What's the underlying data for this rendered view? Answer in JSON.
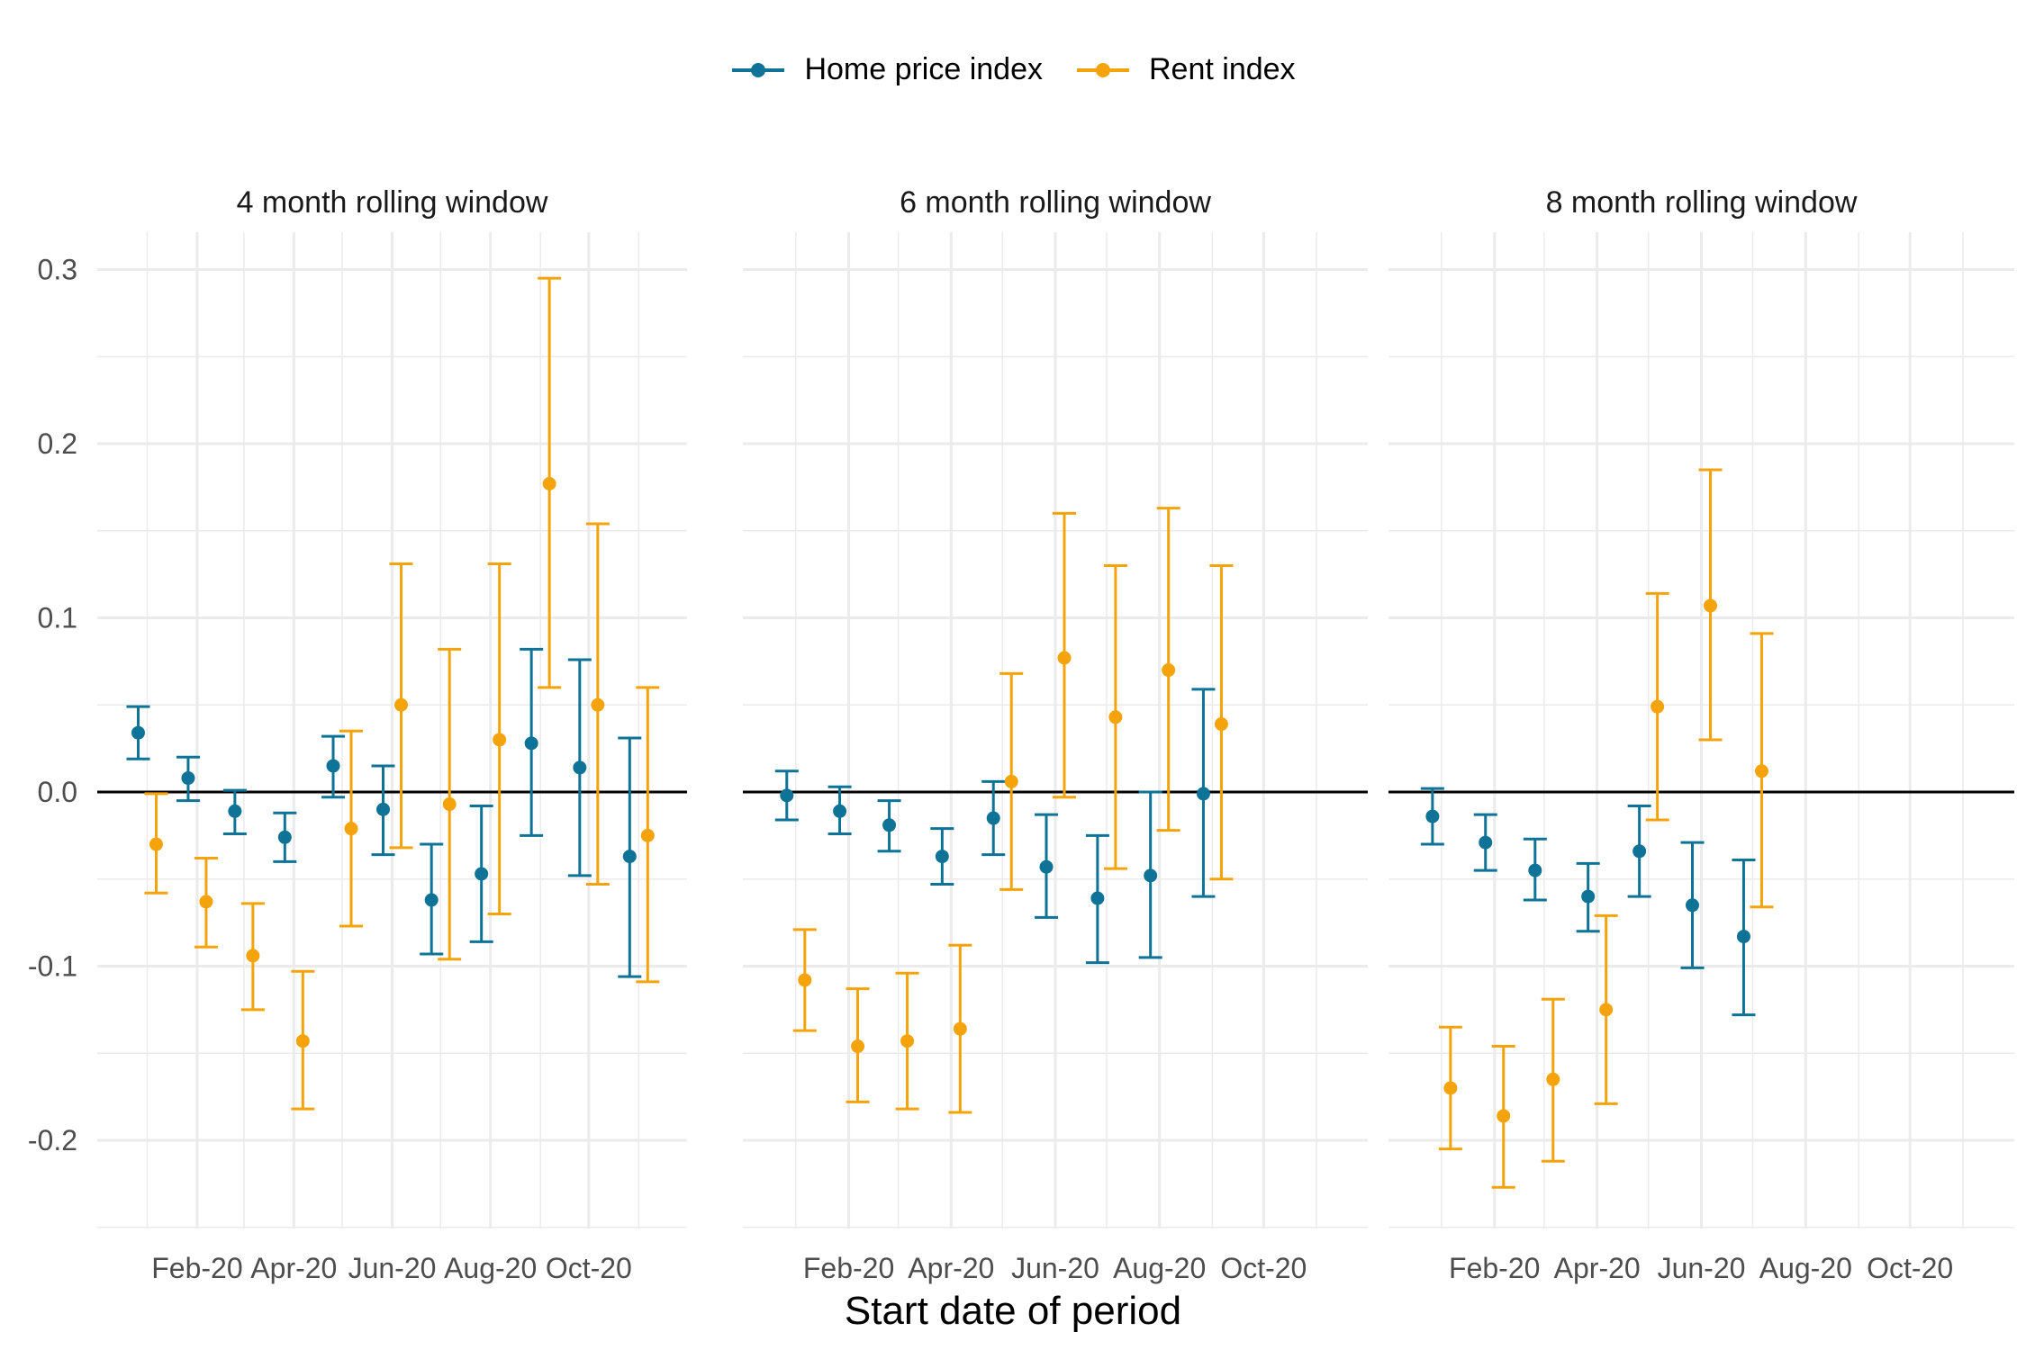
{
  "colors": {
    "home": "#0E7396",
    "rent": "#F5A30B",
    "grid": "#EBEBEB",
    "zero": "#000000"
  },
  "legend": [
    {
      "key": "home",
      "label": "Home price index"
    },
    {
      "key": "rent",
      "label": "Rent index"
    }
  ],
  "chart_data": {
    "type": "scatter",
    "error_bars": true,
    "xlabel": "Start date of period",
    "ylabel": "",
    "ylim": [
      -0.25,
      0.3
    ],
    "yticks": [
      -0.2,
      -0.1,
      0.0,
      0.1,
      0.2,
      0.3
    ],
    "ytick_labels": [
      "-0.2",
      "-0.1",
      "0.0",
      "0.1",
      "0.2",
      "0.3"
    ],
    "xlim": [
      "2019-12-01",
      "2020-12-01"
    ],
    "xticks": [
      "2020-02-01",
      "2020-04-01",
      "2020-06-01",
      "2020-08-01",
      "2020-10-01"
    ],
    "xtick_labels": [
      "Feb-20",
      "Apr-20",
      "Jun-20",
      "Aug-20",
      "Oct-20"
    ],
    "reference_line_y": 0,
    "grid": true,
    "legend_position": "top",
    "facets": [
      {
        "title": "4 month rolling window",
        "series": [
          {
            "name": "Home price index",
            "key": "home",
            "dates": [
              "2020-01-01",
              "2020-02-01",
              "2020-03-01",
              "2020-04-01",
              "2020-05-01",
              "2020-06-01",
              "2020-07-01",
              "2020-08-01",
              "2020-09-01",
              "2020-10-01",
              "2020-11-01"
            ],
            "y": [
              0.034,
              0.008,
              -0.011,
              -0.026,
              0.015,
              -0.01,
              -0.062,
              -0.047,
              0.028,
              0.014,
              -0.037
            ],
            "lo": [
              0.019,
              -0.005,
              -0.024,
              -0.04,
              -0.003,
              -0.036,
              -0.093,
              -0.086,
              -0.025,
              -0.048,
              -0.106
            ],
            "hi": [
              0.049,
              0.02,
              0.001,
              -0.012,
              0.032,
              0.015,
              -0.03,
              -0.008,
              0.082,
              0.076,
              0.031
            ]
          },
          {
            "name": "Rent index",
            "key": "rent",
            "dates": [
              "2020-01-01",
              "2020-02-01",
              "2020-03-01",
              "2020-04-01",
              "2020-05-01",
              "2020-06-01",
              "2020-07-01",
              "2020-08-01",
              "2020-09-01",
              "2020-10-01",
              "2020-11-01"
            ],
            "y": [
              -0.03,
              -0.063,
              -0.094,
              -0.143,
              -0.021,
              0.05,
              -0.007,
              0.03,
              0.177,
              0.05,
              -0.025
            ],
            "lo": [
              -0.058,
              -0.089,
              -0.125,
              -0.182,
              -0.077,
              -0.032,
              -0.096,
              -0.07,
              0.06,
              -0.053,
              -0.109
            ],
            "hi": [
              -0.001,
              -0.038,
              -0.064,
              -0.103,
              0.035,
              0.131,
              0.082,
              0.131,
              0.295,
              0.154,
              0.06
            ]
          }
        ]
      },
      {
        "title": "6 month rolling window",
        "series": [
          {
            "name": "Home price index",
            "key": "home",
            "dates": [
              "2020-01-01",
              "2020-02-01",
              "2020-03-01",
              "2020-04-01",
              "2020-05-01",
              "2020-06-01",
              "2020-07-01",
              "2020-08-01",
              "2020-09-01"
            ],
            "y": [
              -0.002,
              -0.011,
              -0.019,
              -0.037,
              -0.015,
              -0.043,
              -0.061,
              -0.048,
              -0.001
            ],
            "lo": [
              -0.016,
              -0.024,
              -0.034,
              -0.053,
              -0.036,
              -0.072,
              -0.098,
              -0.095,
              -0.06
            ],
            "hi": [
              0.012,
              0.003,
              -0.005,
              -0.021,
              0.006,
              -0.013,
              -0.025,
              0.0,
              0.059
            ]
          },
          {
            "name": "Rent index",
            "key": "rent",
            "dates": [
              "2020-01-01",
              "2020-02-01",
              "2020-03-01",
              "2020-04-01",
              "2020-05-01",
              "2020-06-01",
              "2020-07-01",
              "2020-08-01",
              "2020-09-01"
            ],
            "y": [
              -0.108,
              -0.146,
              -0.143,
              -0.136,
              0.006,
              0.077,
              0.043,
              0.07,
              0.039
            ],
            "lo": [
              -0.137,
              -0.178,
              -0.182,
              -0.184,
              -0.056,
              -0.003,
              -0.044,
              -0.022,
              -0.05
            ],
            "hi": [
              -0.079,
              -0.113,
              -0.104,
              -0.088,
              0.068,
              0.16,
              0.13,
              0.163,
              0.13
            ]
          }
        ]
      },
      {
        "title": "8 month rolling window",
        "series": [
          {
            "name": "Home price index",
            "key": "home",
            "dates": [
              "2020-01-01",
              "2020-02-01",
              "2020-03-01",
              "2020-04-01",
              "2020-05-01",
              "2020-06-01",
              "2020-07-01"
            ],
            "y": [
              -0.014,
              -0.029,
              -0.045,
              -0.06,
              -0.034,
              -0.065,
              -0.083
            ],
            "lo": [
              -0.03,
              -0.045,
              -0.062,
              -0.08,
              -0.06,
              -0.101,
              -0.128
            ],
            "hi": [
              0.002,
              -0.013,
              -0.027,
              -0.041,
              -0.008,
              -0.029,
              -0.039
            ]
          },
          {
            "name": "Rent index",
            "key": "rent",
            "dates": [
              "2020-01-01",
              "2020-02-01",
              "2020-03-01",
              "2020-04-01",
              "2020-05-01",
              "2020-06-01",
              "2020-07-01"
            ],
            "y": [
              -0.17,
              -0.186,
              -0.165,
              -0.125,
              0.049,
              0.107,
              0.012
            ],
            "lo": [
              -0.205,
              -0.227,
              -0.212,
              -0.179,
              -0.016,
              0.03,
              -0.066
            ],
            "hi": [
              -0.135,
              -0.146,
              -0.119,
              -0.071,
              0.114,
              0.185,
              0.091
            ]
          }
        ]
      }
    ]
  }
}
